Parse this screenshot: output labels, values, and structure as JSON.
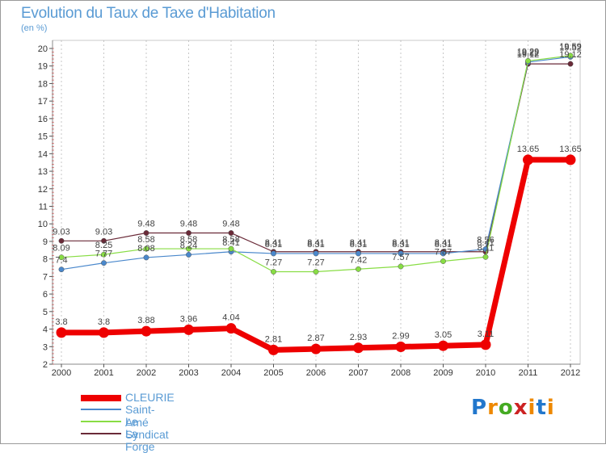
{
  "header": {
    "title": "Evolution du Taux de Taxe d'Habitation",
    "subtitle": "(en %)"
  },
  "colors": {
    "grid": "#b0b0b0",
    "axis_text": "#333333",
    "title": "#5a9bd4"
  },
  "chart_data": {
    "type": "line",
    "title": "Evolution du Taux de Taxe d'Habitation",
    "subtitle": "(en %)",
    "xlabel": "",
    "ylabel": "(en %)",
    "x": [
      "2000",
      "2001",
      "2002",
      "2003",
      "2004",
      "2005",
      "2006",
      "2007",
      "2008",
      "2009",
      "2010",
      "2011",
      "2012"
    ],
    "ylim": [
      2,
      20
    ],
    "yticks": [
      "2",
      "3",
      "4",
      "5",
      "6",
      "7",
      "8",
      "9",
      "10",
      "11",
      "12",
      "13",
      "14",
      "15",
      "16",
      "17",
      "18",
      "19",
      "20"
    ],
    "grid": "vertical dashed",
    "legend_position": "bottom-left",
    "series": [
      {
        "name": "CLEURIE",
        "color": "#ee0000",
        "values": [
          3.8,
          3.8,
          3.88,
          3.96,
          4.04,
          2.81,
          2.87,
          2.93,
          2.99,
          3.05,
          3.11,
          13.65,
          13.65
        ],
        "labels": [
          "3.8",
          "3.8",
          "3.88",
          "3.96",
          "4.04",
          "2.81",
          "2.87",
          "2.93",
          "2.99",
          "3.05",
          "3.11",
          "13.65",
          "13.65"
        ]
      },
      {
        "name": "Saint-Amé",
        "color": "#4a88cc",
        "values": [
          7.4,
          7.77,
          8.08,
          8.24,
          8.41,
          8.31,
          8.31,
          8.31,
          8.31,
          8.31,
          8.56,
          19.22,
          19.52
        ],
        "labels": [
          "7.4",
          "7.77",
          "8.08",
          "8.24",
          "8.41",
          "8.31",
          "8.31",
          "8.31",
          "8.31",
          "8.31",
          "8.56",
          "19.22",
          "19.52"
        ]
      },
      {
        "name": "Le Syndicat",
        "color": "#88dd44",
        "values": [
          8.09,
          8.25,
          8.58,
          8.58,
          8.58,
          7.27,
          7.27,
          7.42,
          7.57,
          7.87,
          8.11,
          19.29,
          19.59
        ],
        "labels": [
          "8.09",
          "8.25",
          "8.58",
          "8.58",
          "8.58",
          "7.27",
          "7.27",
          "7.42",
          "7.57",
          "7.87",
          "8.11",
          "19.29",
          "19.59"
        ]
      },
      {
        "name": "La Forge",
        "color": "#6a2a38",
        "values": [
          9.03,
          9.03,
          9.48,
          9.48,
          9.48,
          8.41,
          8.41,
          8.41,
          8.41,
          8.41,
          8.41,
          19.12,
          19.12
        ],
        "labels": [
          "9.03",
          "9.03",
          "9.48",
          "9.48",
          "9.48",
          "8.41",
          "8.41",
          "8.41",
          "8.41",
          "8.41",
          "8.41",
          "19.12",
          "19.12"
        ]
      }
    ]
  },
  "legend": {
    "items": [
      {
        "label": "CLEURIE",
        "color": "#ee0000"
      },
      {
        "label": "Saint-Amé",
        "color": "#4a88cc"
      },
      {
        "label": "Le Syndicat",
        "color": "#88dd44"
      },
      {
        "label": "La Forge",
        "color": "#6a2a38"
      }
    ]
  },
  "logo": {
    "letters": [
      "P",
      "r",
      "o",
      "x",
      "i",
      "t",
      "i"
    ],
    "colors": [
      "#2277cc",
      "#ee8800",
      "#44aa22",
      "#cc2222",
      "#ee8800",
      "#2277cc",
      "#ee8800"
    ]
  }
}
